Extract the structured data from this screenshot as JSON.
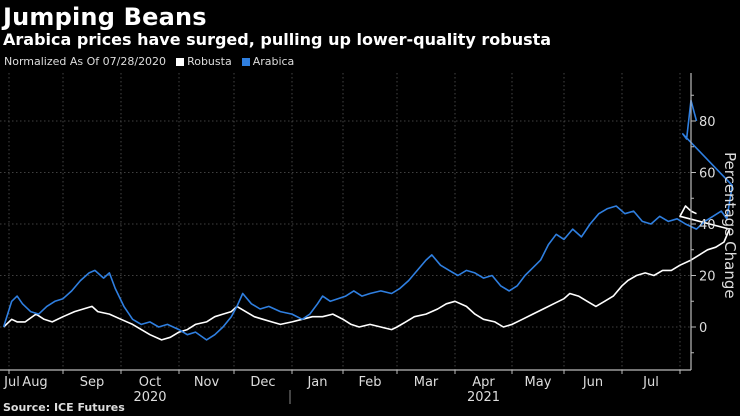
{
  "header": {
    "title": "Jumping Beans",
    "subtitle": "Arabica prices have surged, pulling up lower-quality robusta"
  },
  "legend": {
    "note": "Normalized As Of 07/28/2020",
    "items": [
      {
        "label": "Robusta",
        "color": "#ffffff"
      },
      {
        "label": "Arabica",
        "color": "#2f7fe0"
      }
    ]
  },
  "source": "Source: ICE Futures",
  "chart_data": {
    "type": "line",
    "title": "Jumping Beans",
    "subtitle": "Arabica prices have surged, pulling up lower-quality robusta",
    "xlabel": "",
    "ylabel": "Percentage Change",
    "ylim": [
      -17,
      98
    ],
    "yticks": [
      0,
      20,
      40,
      60,
      80
    ],
    "grid": true,
    "legend_position": "top-left",
    "x_month_labels": [
      "Jul",
      "Aug",
      "Sep",
      "Oct",
      "Nov",
      "Dec",
      "Jan",
      "Feb",
      "Mar",
      "Apr",
      "May",
      "Jun",
      "Jul"
    ],
    "x_year_labels": [
      {
        "label": "2020",
        "under": "Oct"
      },
      {
        "label": "2021",
        "under": "Apr"
      }
    ],
    "x_unit": "months since 2020-08-01",
    "series": [
      {
        "name": "Robusta",
        "color": "#ffffff",
        "points": [
          [
            -0.1,
            0
          ],
          [
            0.05,
            3
          ],
          [
            0.15,
            2
          ],
          [
            0.3,
            2
          ],
          [
            0.5,
            5
          ],
          [
            0.65,
            3
          ],
          [
            0.8,
            2
          ],
          [
            1.0,
            4
          ],
          [
            1.2,
            6
          ],
          [
            1.35,
            7
          ],
          [
            1.5,
            8
          ],
          [
            1.6,
            6
          ],
          [
            1.8,
            5
          ],
          [
            2.0,
            3
          ],
          [
            2.2,
            1
          ],
          [
            2.35,
            -1
          ],
          [
            2.5,
            -3
          ],
          [
            2.7,
            -5
          ],
          [
            2.85,
            -4
          ],
          [
            3.0,
            -2
          ],
          [
            3.15,
            -1
          ],
          [
            3.3,
            1
          ],
          [
            3.5,
            2
          ],
          [
            3.65,
            4
          ],
          [
            3.8,
            5
          ],
          [
            3.95,
            6
          ],
          [
            4.05,
            8
          ],
          [
            4.2,
            6
          ],
          [
            4.35,
            4
          ],
          [
            4.5,
            3
          ],
          [
            4.65,
            2
          ],
          [
            4.8,
            1
          ],
          [
            5.0,
            2
          ],
          [
            5.2,
            3
          ],
          [
            5.4,
            4
          ],
          [
            5.6,
            4
          ],
          [
            5.8,
            5
          ],
          [
            6.0,
            3
          ],
          [
            6.15,
            1
          ],
          [
            6.3,
            0
          ],
          [
            6.5,
            1
          ],
          [
            6.7,
            0
          ],
          [
            6.9,
            -1
          ],
          [
            7.0,
            0
          ],
          [
            7.15,
            2
          ],
          [
            7.3,
            4
          ],
          [
            7.5,
            5
          ],
          [
            7.7,
            7
          ],
          [
            7.85,
            9
          ],
          [
            8.0,
            10
          ],
          [
            8.2,
            8
          ],
          [
            8.35,
            5
          ],
          [
            8.5,
            3
          ],
          [
            8.7,
            2
          ],
          [
            8.85,
            0
          ],
          [
            9.0,
            1
          ],
          [
            9.2,
            3
          ],
          [
            9.4,
            5
          ],
          [
            9.6,
            7
          ],
          [
            9.8,
            9
          ],
          [
            10.0,
            11
          ],
          [
            10.1,
            13
          ],
          [
            10.25,
            12
          ],
          [
            10.4,
            10
          ],
          [
            10.55,
            8
          ],
          [
            10.7,
            10
          ],
          [
            10.85,
            12
          ],
          [
            11.0,
            16
          ],
          [
            11.1,
            18
          ],
          [
            11.25,
            20
          ],
          [
            11.4,
            21
          ],
          [
            11.55,
            20
          ],
          [
            11.7,
            22
          ],
          [
            11.85,
            22
          ],
          [
            12.0,
            24
          ],
          [
            12.2,
            26
          ],
          [
            12.35,
            28
          ],
          [
            12.5,
            30
          ],
          [
            12.65,
            31
          ],
          [
            12.8,
            33
          ],
          [
            12.9,
            38
          ],
          [
            13.0,
            43
          ],
          [
            13.1,
            47
          ],
          [
            13.2,
            45
          ],
          [
            13.3,
            44
          ]
        ]
      },
      {
        "name": "Arabica",
        "color": "#2f7fe0",
        "points": [
          [
            -0.1,
            0
          ],
          [
            0.05,
            10
          ],
          [
            0.15,
            12
          ],
          [
            0.25,
            9
          ],
          [
            0.4,
            6
          ],
          [
            0.55,
            5
          ],
          [
            0.7,
            8
          ],
          [
            0.85,
            10
          ],
          [
            1.0,
            11
          ],
          [
            1.15,
            14
          ],
          [
            1.3,
            18
          ],
          [
            1.45,
            21
          ],
          [
            1.55,
            22
          ],
          [
            1.7,
            19
          ],
          [
            1.8,
            21
          ],
          [
            1.9,
            15
          ],
          [
            2.05,
            8
          ],
          [
            2.2,
            3
          ],
          [
            2.35,
            1
          ],
          [
            2.5,
            2
          ],
          [
            2.65,
            0
          ],
          [
            2.8,
            1
          ],
          [
            3.0,
            -1
          ],
          [
            3.15,
            -3
          ],
          [
            3.3,
            -2
          ],
          [
            3.5,
            -5
          ],
          [
            3.65,
            -3
          ],
          [
            3.8,
            0
          ],
          [
            3.95,
            4
          ],
          [
            4.05,
            8
          ],
          [
            4.15,
            13
          ],
          [
            4.3,
            9
          ],
          [
            4.45,
            7
          ],
          [
            4.6,
            8
          ],
          [
            4.8,
            6
          ],
          [
            5.0,
            5
          ],
          [
            5.2,
            3
          ],
          [
            5.35,
            5
          ],
          [
            5.5,
            9
          ],
          [
            5.6,
            12
          ],
          [
            5.75,
            10
          ],
          [
            5.9,
            11
          ],
          [
            6.05,
            12
          ],
          [
            6.2,
            14
          ],
          [
            6.35,
            12
          ],
          [
            6.5,
            13
          ],
          [
            6.7,
            14
          ],
          [
            6.9,
            13
          ],
          [
            7.05,
            15
          ],
          [
            7.2,
            18
          ],
          [
            7.35,
            22
          ],
          [
            7.5,
            26
          ],
          [
            7.6,
            28
          ],
          [
            7.75,
            24
          ],
          [
            7.9,
            22
          ],
          [
            8.05,
            20
          ],
          [
            8.2,
            22
          ],
          [
            8.35,
            21
          ],
          [
            8.5,
            19
          ],
          [
            8.65,
            20
          ],
          [
            8.8,
            16
          ],
          [
            8.95,
            14
          ],
          [
            9.1,
            16
          ],
          [
            9.25,
            20
          ],
          [
            9.4,
            23
          ],
          [
            9.55,
            26
          ],
          [
            9.7,
            32
          ],
          [
            9.85,
            36
          ],
          [
            10.0,
            34
          ],
          [
            10.15,
            38
          ],
          [
            10.3,
            35
          ],
          [
            10.45,
            40
          ],
          [
            10.6,
            44
          ],
          [
            10.75,
            46
          ],
          [
            10.9,
            47
          ],
          [
            11.05,
            44
          ],
          [
            11.2,
            45
          ],
          [
            11.35,
            41
          ],
          [
            11.5,
            40
          ],
          [
            11.65,
            43
          ],
          [
            11.8,
            41
          ],
          [
            11.95,
            42
          ],
          [
            12.1,
            40
          ],
          [
            12.3,
            38
          ],
          [
            12.45,
            41
          ],
          [
            12.6,
            43
          ],
          [
            12.75,
            45
          ],
          [
            12.85,
            42
          ],
          [
            12.95,
            55
          ],
          [
            13.05,
            75
          ],
          [
            13.12,
            73
          ],
          [
            13.2,
            88
          ],
          [
            13.3,
            80
          ]
        ]
      }
    ]
  }
}
